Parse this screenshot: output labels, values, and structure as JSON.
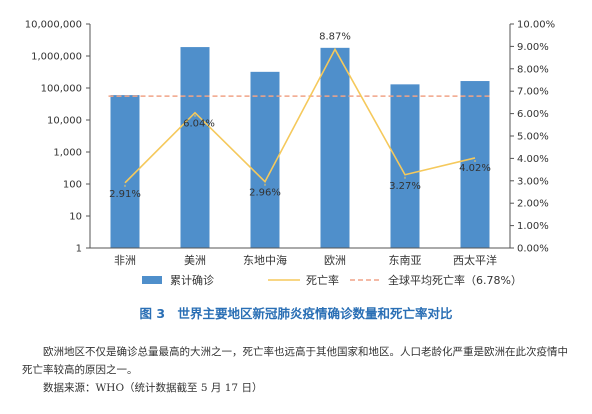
{
  "chart_data": {
    "type": "bar",
    "categories": [
      "非洲",
      "美洲",
      "东地中海",
      "欧洲",
      "东南亚",
      "西太平洋"
    ],
    "series": [
      {
        "name": "累计确诊",
        "type": "bar",
        "axis": "left",
        "color": "#4f8fcb",
        "values": [
          60000,
          1900000,
          320000,
          1800000,
          130000,
          165000
        ]
      },
      {
        "name": "死亡率",
        "type": "line",
        "axis": "right",
        "color": "#f5c95c",
        "values": [
          2.91,
          6.04,
          2.96,
          8.87,
          3.27,
          4.02
        ],
        "labels": [
          "2.91%",
          "6.04%",
          "2.96%",
          "8.87%",
          "3.27%",
          "4.02%"
        ]
      },
      {
        "name": "全球平均死亡率（6.78%）",
        "type": "reference-line",
        "axis": "right",
        "color": "#f0a488",
        "value": 6.78
      }
    ],
    "left_axis": {
      "scale": "log",
      "ylim": [
        1,
        10000000
      ],
      "ticks": [
        "1",
        "10",
        "100",
        "1,000",
        "10,000",
        "100,000",
        "1,000,000",
        "10,000,000"
      ]
    },
    "right_axis": {
      "scale": "linear",
      "ylim": [
        0,
        10
      ],
      "ticks": [
        "0.00%",
        "1.00%",
        "2.00%",
        "3.00%",
        "4.00%",
        "5.00%",
        "6.00%",
        "7.00%",
        "8.00%",
        "9.00%",
        "10.00%"
      ]
    },
    "legend_position": "bottom",
    "grid": false
  },
  "figure": {
    "title": "图 3　世界主要地区新冠肺炎疫情确诊数量和死亡率对比"
  },
  "caption": "欧洲地区不仅是确诊总量最高的大洲之一，死亡率也远高于其他国家和地区。人口老龄化严重是欧洲在此次疫情中死亡率较高的原因之一。",
  "source": "数据来源：WHO（统计数据截至 5 月 17 日）"
}
